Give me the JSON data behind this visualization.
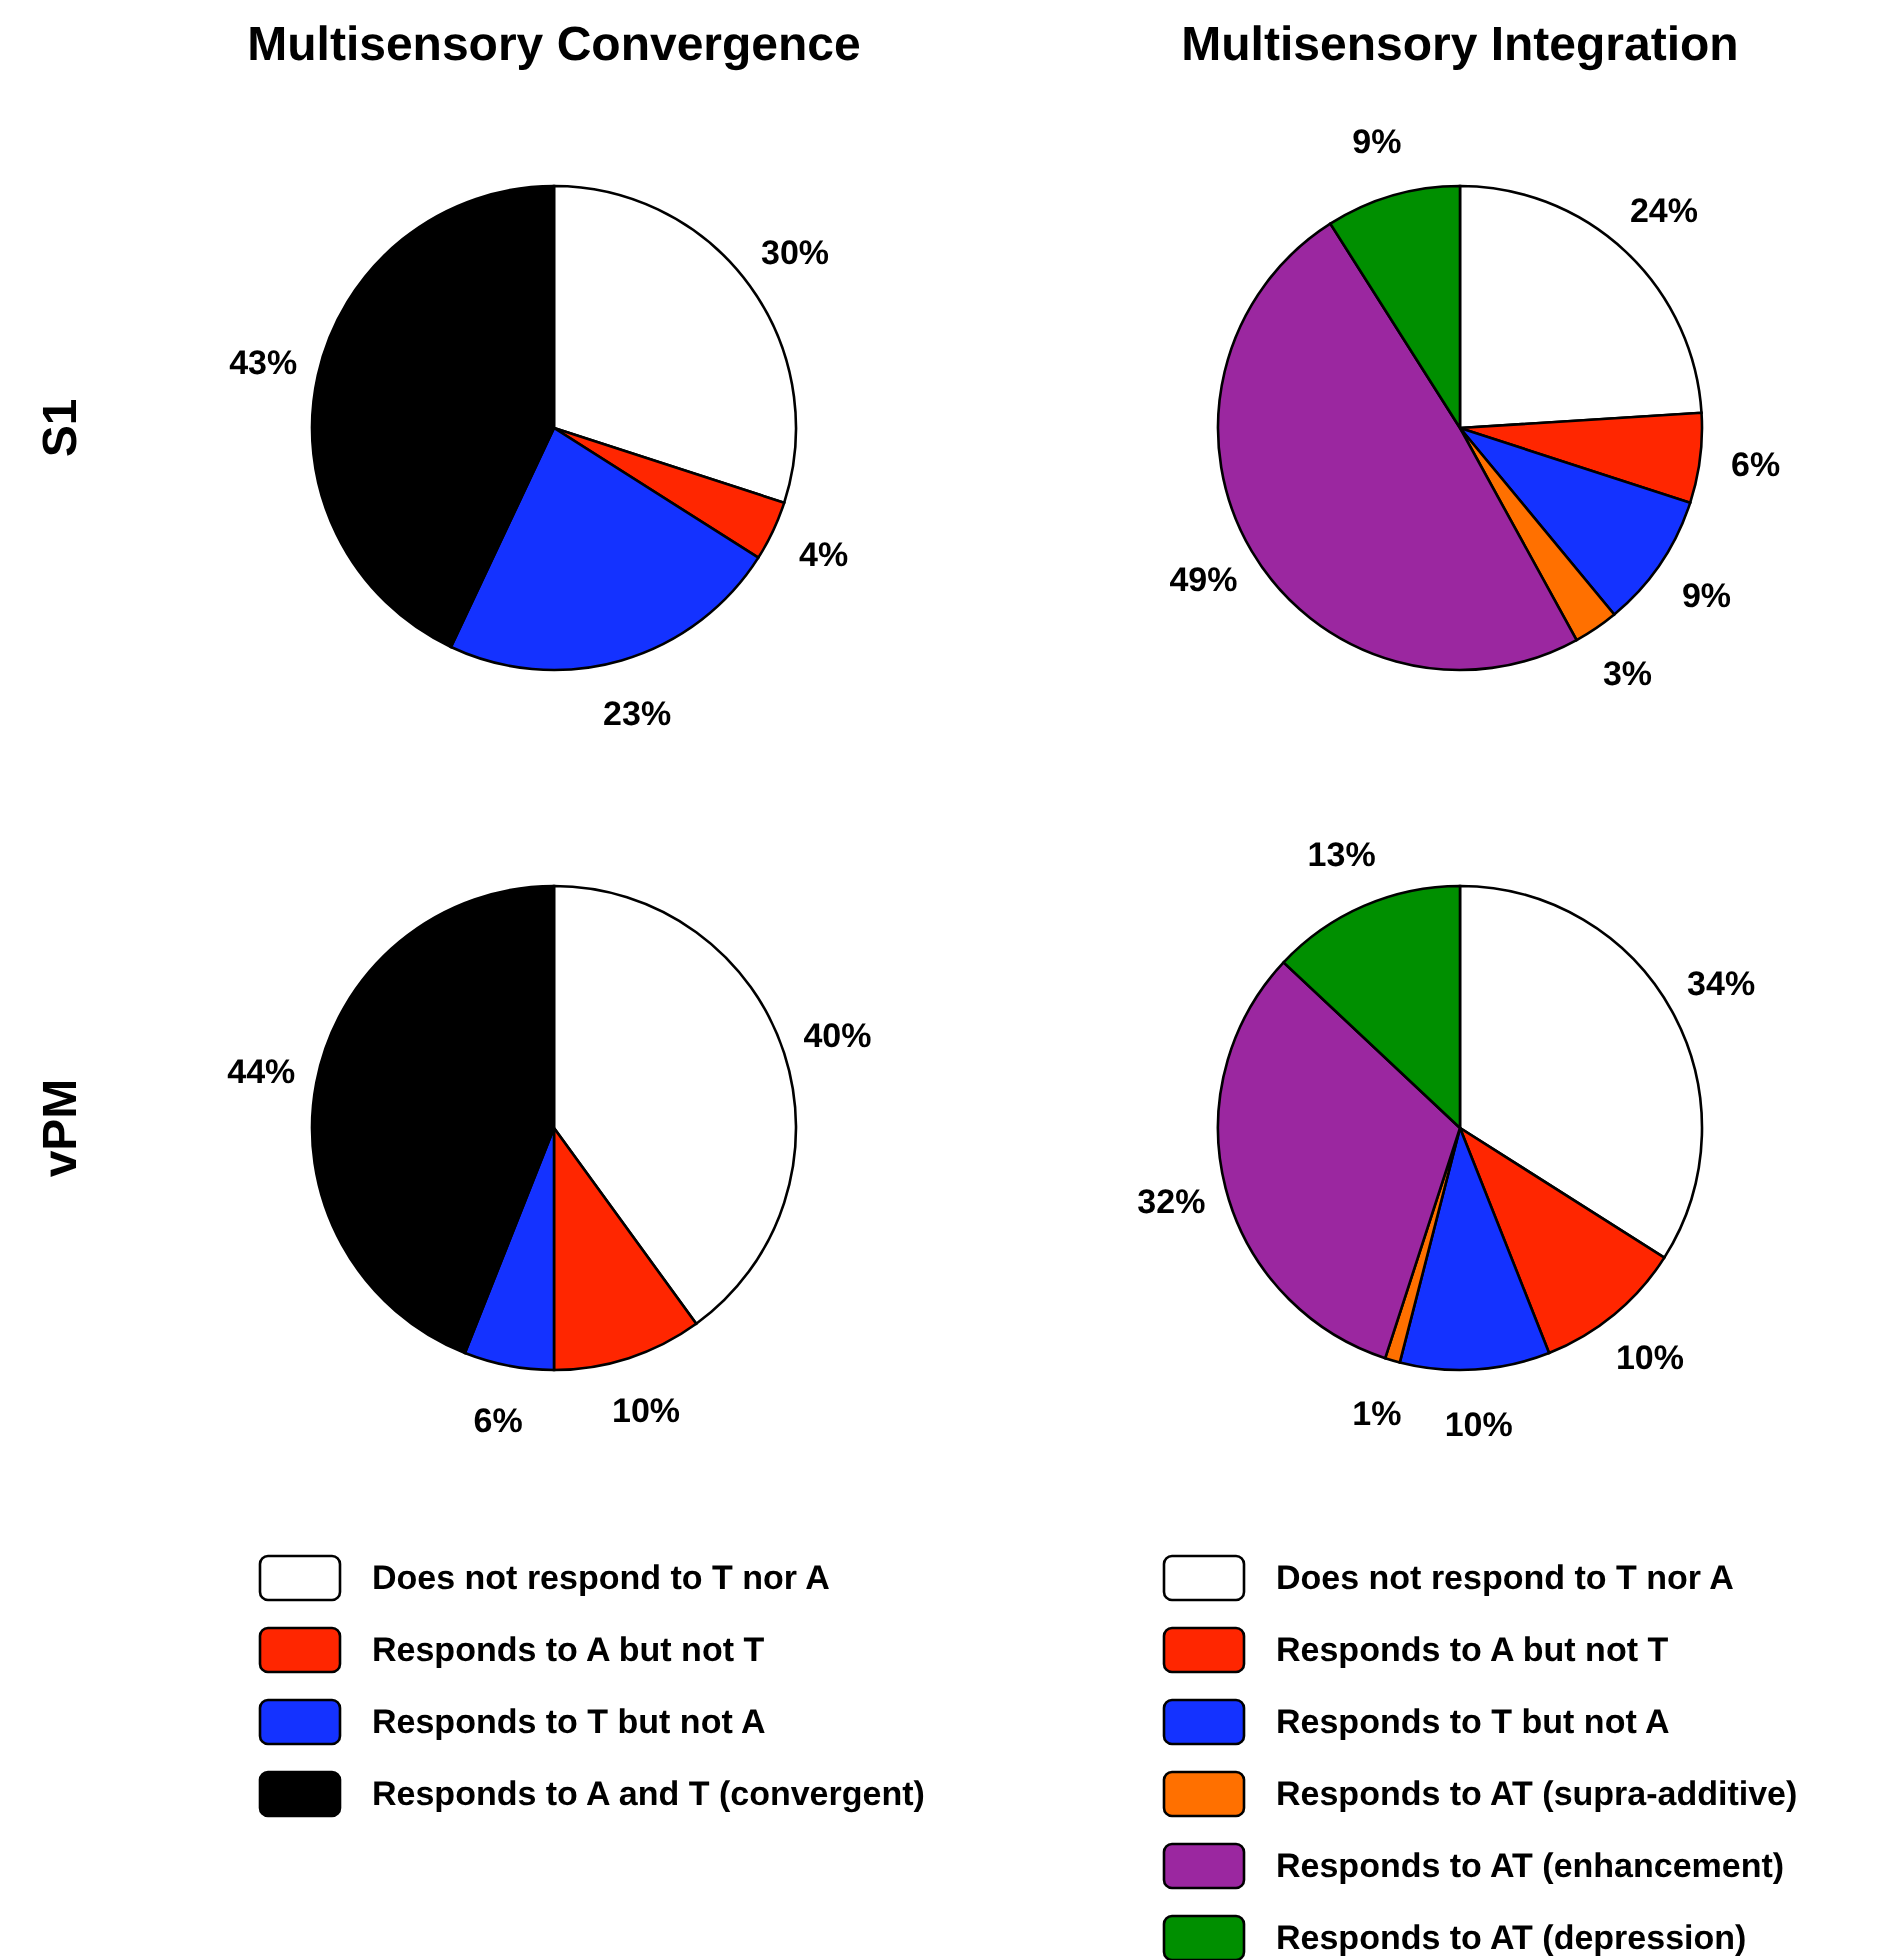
{
  "chart_data": [
    {
      "type": "pie",
      "title": "Multisensory Convergence",
      "ylabel": "S1",
      "categories": [
        null,
        null,
        null,
        null
      ],
      "values": [
        30,
        4,
        23,
        43
      ],
      "colors": [
        "#ffffff",
        "#ff2600",
        "#1432ff",
        "#000000"
      ],
      "value_labels": [
        "30%",
        "4%",
        "23%",
        "43%"
      ]
    },
    {
      "type": "pie",
      "title": "Multisensory Integration",
      "categories": [
        null,
        null,
        null,
        null,
        null,
        null
      ],
      "values": [
        24,
        6,
        9,
        3,
        49,
        9
      ],
      "colors": [
        "#ffffff",
        "#ff2600",
        "#1432ff",
        "#ff7000",
        "#9b27a0",
        "#008f00"
      ],
      "value_labels": [
        "24%",
        "6%",
        "9%",
        "3%",
        "49%",
        "9%"
      ]
    },
    {
      "type": "pie",
      "ylabel": "vPM",
      "categories": [
        "Does not respond to T nor A",
        "Responds to A but not T",
        "Responds to T but not A",
        "Responds to A and T (convergent)"
      ],
      "values": [
        40,
        10,
        6,
        44
      ],
      "colors": [
        "#ffffff",
        "#ff2600",
        "#1432ff",
        "#000000"
      ],
      "value_labels": [
        "40%",
        "10%",
        "6%",
        "44%"
      ],
      "legend": "bottom"
    },
    {
      "type": "pie",
      "categories": [
        "Does not respond to T nor A",
        "Responds to A but not T",
        "Responds to T but not A",
        "Responds to AT (supra-additive)",
        "Responds to AT (enhancement)",
        "Responds to AT (depression)"
      ],
      "values": [
        34,
        10,
        10,
        1,
        32,
        13
      ],
      "colors": [
        "#ffffff",
        "#ff2600",
        "#1432ff",
        "#ff7000",
        "#9b27a0",
        "#008f00"
      ],
      "value_labels": [
        "34%",
        "10%",
        "10%",
        "1%",
        "32%",
        "13%"
      ],
      "legend": "bottom"
    }
  ]
}
